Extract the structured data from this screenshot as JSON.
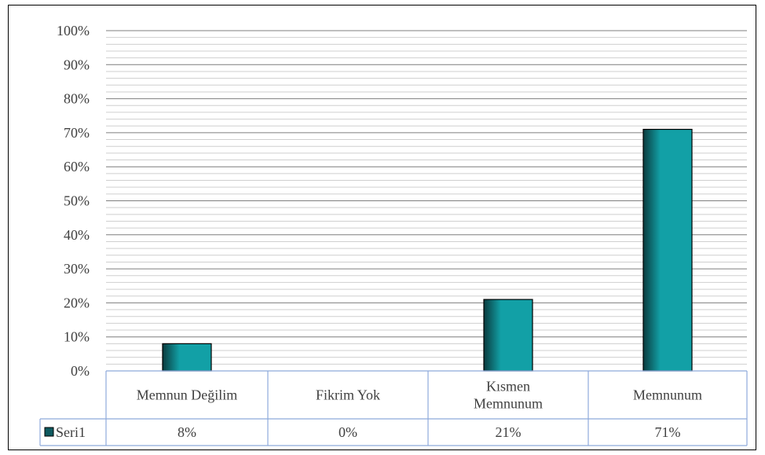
{
  "chart_data": {
    "type": "bar",
    "categories": [
      "Memnun Değilim",
      "Fikrim Yok",
      "Kısmen Memnunum",
      "Memnunum"
    ],
    "category_lines": [
      [
        "Memnun Değilim"
      ],
      [
        "Fikrim Yok"
      ],
      [
        "Kısmen",
        "Memnunum"
      ],
      [
        "Memnunum"
      ]
    ],
    "series": [
      {
        "name": "Seri1",
        "values": [
          8,
          0,
          21,
          71
        ],
        "value_labels": [
          "8%",
          "0%",
          "21%",
          "71%"
        ]
      }
    ],
    "ylim": [
      0,
      100
    ],
    "y_ticks": [
      "0%",
      "10%",
      "20%",
      "30%",
      "40%",
      "50%",
      "60%",
      "70%",
      "80%",
      "90%",
      "100%"
    ],
    "y_tick_values": [
      0,
      10,
      20,
      30,
      40,
      50,
      60,
      70,
      80,
      90,
      100
    ],
    "minor_gridlines": true,
    "major_gridlines": true,
    "legend": "data-table",
    "data_table": true,
    "colors": {
      "bar_light": "#12a0a6",
      "bar_dark": "#0a3b3e",
      "bar_border": "#000000",
      "major_grid": "#7f7f7f",
      "minor_grid": "#cfcfcf",
      "table_border": "#8eaadb",
      "legend_key": "#0e5a60"
    }
  }
}
